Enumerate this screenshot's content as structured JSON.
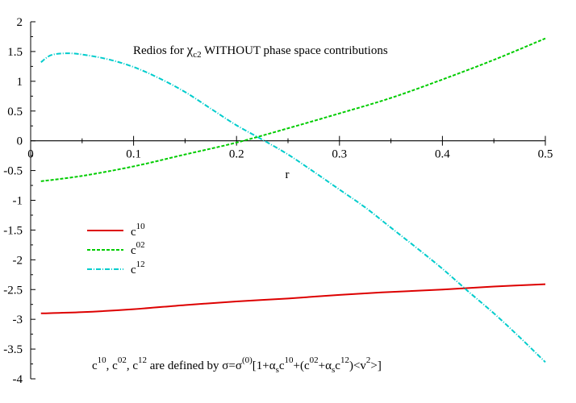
{
  "chart_data": {
    "type": "line",
    "title": "Redios for χc2 WITHOUT phase space contributions",
    "title_parts": {
      "prefix": "Redios for ",
      "chi": "χ",
      "chi_sub": "c2",
      "suffix": " WITHOUT phase space contributions"
    },
    "xlabel": "r",
    "ylabel": "",
    "xlim": [
      0,
      0.5
    ],
    "ylim": [
      -4,
      2
    ],
    "x_ticks": [
      0,
      0.1,
      0.2,
      0.3,
      0.4,
      0.5
    ],
    "x_tick_labels": [
      "0",
      "0.1",
      "0.2",
      "0.3",
      "0.4",
      "0.5"
    ],
    "y_ticks": [
      2,
      1.5,
      1,
      0.5,
      0,
      -0.5,
      -1,
      -1.5,
      -2,
      -2.5,
      -3,
      -3.5,
      -4
    ],
    "y_tick_labels": [
      "2",
      "1.5",
      "1",
      "0.5",
      "0",
      "-0.5",
      "-1",
      "-1.5",
      "-2",
      "-2.5",
      "-3",
      "-3.5",
      "-4"
    ],
    "grid": false,
    "legend_position": "center-left",
    "series": [
      {
        "name": "c10",
        "label_base": "c",
        "label_sup": "10",
        "color": "#dd0000",
        "dash": "solid",
        "x": [
          0.01,
          0.05,
          0.1,
          0.15,
          0.2,
          0.25,
          0.3,
          0.35,
          0.4,
          0.45,
          0.5
        ],
        "y": [
          -2.9,
          -2.88,
          -2.83,
          -2.76,
          -2.7,
          -2.65,
          -2.59,
          -2.54,
          -2.5,
          -2.45,
          -2.41
        ]
      },
      {
        "name": "c02",
        "label_base": "c",
        "label_sup": "02",
        "color": "#00cc00",
        "dash": "dashed",
        "x": [
          0.01,
          0.05,
          0.1,
          0.15,
          0.2,
          0.25,
          0.3,
          0.35,
          0.4,
          0.45,
          0.5
        ],
        "y": [
          -0.68,
          -0.59,
          -0.43,
          -0.23,
          -0.03,
          0.21,
          0.46,
          0.72,
          1.03,
          1.36,
          1.72
        ]
      },
      {
        "name": "c12",
        "label_base": "c",
        "label_sup": "12",
        "color": "#00cccc",
        "dash": "dashdot",
        "x": [
          0.01,
          0.02,
          0.035,
          0.05,
          0.075,
          0.1,
          0.125,
          0.15,
          0.175,
          0.2,
          0.225,
          0.25,
          0.275,
          0.3,
          0.325,
          0.35,
          0.375,
          0.4,
          0.425,
          0.45,
          0.475,
          0.5
        ],
        "y": [
          1.32,
          1.44,
          1.47,
          1.45,
          1.37,
          1.24,
          1.05,
          0.82,
          0.54,
          0.26,
          0.02,
          -0.23,
          -0.52,
          -0.82,
          -1.12,
          -1.46,
          -1.8,
          -2.15,
          -2.53,
          -2.9,
          -3.3,
          -3.72
        ]
      }
    ],
    "annotation": {
      "a": "c",
      "a_sup": "10",
      "b": ", c",
      "b_sup": "02",
      "c": ", c",
      "c_sup": "12",
      "d": " are defined by σ=σ",
      "d_sup": "(0)",
      "e": "[1+α",
      "e_sub": "s",
      "f": "c",
      "f_sup": "10",
      "g": "+(c",
      "g_sup": "02",
      "h": "+α",
      "h_sub": "s",
      "i": "c",
      "i_sup": "12",
      "j": ")<v",
      "j_sup": "2",
      "k": ">]"
    }
  }
}
